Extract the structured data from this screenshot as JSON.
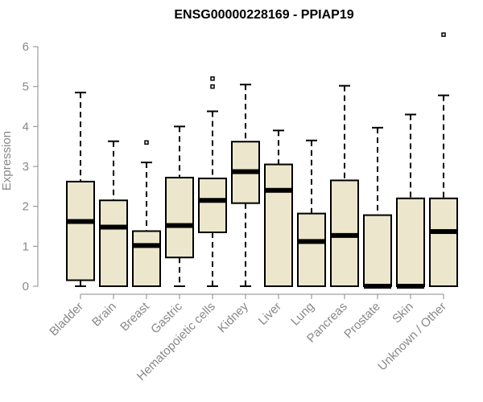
{
  "chart_data": {
    "type": "boxplot",
    "title": "ENSG00000228169 - PPIAP19",
    "ylabel": "Expression",
    "xlabel": "",
    "ylim": [
      0,
      6
    ],
    "yticks": [
      0,
      1,
      2,
      3,
      4,
      5,
      6
    ],
    "grid": false,
    "legend": "none",
    "box_fill": "#ece6cc",
    "categories": [
      "Bladder",
      "Brain",
      "Breast",
      "Gastric",
      "Hematopoietic cells",
      "Kidney",
      "Liver",
      "Lung",
      "Pancreas",
      "Prostate",
      "Skin",
      "Unknown / Other"
    ],
    "boxes": [
      {
        "min": 0.0,
        "q1": 0.15,
        "median": 1.62,
        "q3": 2.62,
        "max": 4.85,
        "outliers": []
      },
      {
        "min": 0.0,
        "q1": 0.0,
        "median": 1.48,
        "q3": 2.15,
        "max": 3.63,
        "outliers": []
      },
      {
        "min": 0.0,
        "q1": 0.0,
        "median": 1.02,
        "q3": 1.38,
        "max": 3.1,
        "outliers": [
          3.6
        ]
      },
      {
        "min": 0.0,
        "q1": 0.72,
        "median": 1.52,
        "q3": 2.72,
        "max": 4.0,
        "outliers": []
      },
      {
        "min": 0.0,
        "q1": 1.35,
        "median": 2.15,
        "q3": 2.7,
        "max": 4.38,
        "outliers": [
          5.0,
          5.2
        ]
      },
      {
        "min": 0.0,
        "q1": 2.08,
        "median": 2.87,
        "q3": 3.62,
        "max": 5.05,
        "outliers": []
      },
      {
        "min": 0.0,
        "q1": 0.0,
        "median": 2.4,
        "q3": 3.05,
        "max": 3.9,
        "outliers": []
      },
      {
        "min": 0.0,
        "q1": 0.0,
        "median": 1.12,
        "q3": 1.82,
        "max": 3.65,
        "outliers": []
      },
      {
        "min": 0.0,
        "q1": 0.0,
        "median": 1.27,
        "q3": 2.65,
        "max": 5.02,
        "outliers": []
      },
      {
        "min": 0.0,
        "q1": 0.0,
        "median": 0.0,
        "q3": 1.78,
        "max": 3.97,
        "outliers": []
      },
      {
        "min": 0.0,
        "q1": 0.0,
        "median": 0.0,
        "q3": 2.2,
        "max": 4.3,
        "outliers": []
      },
      {
        "min": 0.0,
        "q1": 0.0,
        "median": 1.37,
        "q3": 2.2,
        "max": 4.78,
        "outliers": [
          6.3
        ]
      }
    ]
  }
}
